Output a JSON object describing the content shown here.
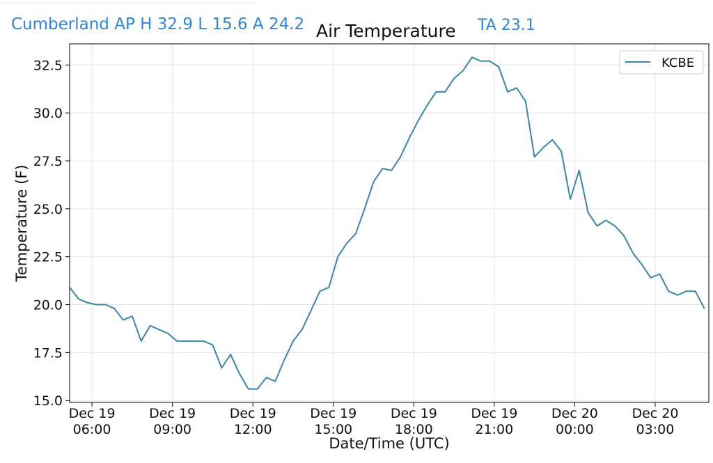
{
  "header": {
    "station_summary": "Cumberland AP H 32.9 L 15.6 A 24.2",
    "ta": "TA 23.1",
    "accent_color": "#2f86d4"
  },
  "chart_data": {
    "type": "line",
    "title": "Air Temperature",
    "xlabel": "Date/Time (UTC)",
    "ylabel": "Temperature (F)",
    "ylim": [
      14.9,
      33.6
    ],
    "xlim": [
      "Dec 19 05:10",
      "Dec 20 05:00"
    ],
    "xticks": [
      {
        "line1": "Dec 19",
        "line2": "06:00",
        "t": "Dec 19 06:00"
      },
      {
        "line1": "Dec 19",
        "line2": "09:00",
        "t": "Dec 19 09:00"
      },
      {
        "line1": "Dec 19",
        "line2": "12:00",
        "t": "Dec 19 12:00"
      },
      {
        "line1": "Dec 19",
        "line2": "15:00",
        "t": "Dec 19 15:00"
      },
      {
        "line1": "Dec 19",
        "line2": "18:00",
        "t": "Dec 19 18:00"
      },
      {
        "line1": "Dec 19",
        "line2": "21:00",
        "t": "Dec 19 21:00"
      },
      {
        "line1": "Dec 20",
        "line2": "00:00",
        "t": "Dec 20 00:00"
      },
      {
        "line1": "Dec 20",
        "line2": "03:00",
        "t": "Dec 20 03:00"
      }
    ],
    "yticks": [
      "15.0",
      "17.5",
      "20.0",
      "22.5",
      "25.0",
      "27.5",
      "30.0",
      "32.5"
    ],
    "grid": true,
    "legend": "top-right",
    "series": [
      {
        "name": "KCBE",
        "color": "#3a85a8",
        "points": [
          [
            "Dec 19 05:10",
            20.9
          ],
          [
            "Dec 19 05:30",
            20.3
          ],
          [
            "Dec 19 05:50",
            20.1
          ],
          [
            "Dec 19 06:10",
            20.0
          ],
          [
            "Dec 19 06:30",
            20.0
          ],
          [
            "Dec 19 06:50",
            19.8
          ],
          [
            "Dec 19 07:10",
            19.2
          ],
          [
            "Dec 19 07:30",
            19.4
          ],
          [
            "Dec 19 07:50",
            18.1
          ],
          [
            "Dec 19 08:10",
            18.9
          ],
          [
            "Dec 19 08:30",
            18.7
          ],
          [
            "Dec 19 08:50",
            18.5
          ],
          [
            "Dec 19 09:10",
            18.1
          ],
          [
            "Dec 19 09:30",
            18.1
          ],
          [
            "Dec 19 09:50",
            18.1
          ],
          [
            "Dec 19 10:10",
            18.1
          ],
          [
            "Dec 19 10:30",
            17.9
          ],
          [
            "Dec 19 10:50",
            16.7
          ],
          [
            "Dec 19 11:10",
            17.4
          ],
          [
            "Dec 19 11:30",
            16.4
          ],
          [
            "Dec 19 11:50",
            15.6
          ],
          [
            "Dec 19 12:10",
            15.6
          ],
          [
            "Dec 19 12:30",
            16.2
          ],
          [
            "Dec 19 12:50",
            16.0
          ],
          [
            "Dec 19 13:10",
            17.1
          ],
          [
            "Dec 19 13:30",
            18.1
          ],
          [
            "Dec 19 13:50",
            18.7
          ],
          [
            "Dec 19 14:10",
            19.7
          ],
          [
            "Dec 19 14:30",
            20.7
          ],
          [
            "Dec 19 14:50",
            20.9
          ],
          [
            "Dec 19 15:10",
            22.5
          ],
          [
            "Dec 19 15:30",
            23.2
          ],
          [
            "Dec 19 15:50",
            23.7
          ],
          [
            "Dec 19 16:10",
            25.0
          ],
          [
            "Dec 19 16:30",
            26.4
          ],
          [
            "Dec 19 16:50",
            27.1
          ],
          [
            "Dec 19 17:10",
            27.0
          ],
          [
            "Dec 19 17:30",
            27.7
          ],
          [
            "Dec 19 17:50",
            28.7
          ],
          [
            "Dec 19 18:10",
            29.6
          ],
          [
            "Dec 19 18:30",
            30.4
          ],
          [
            "Dec 19 18:50",
            31.1
          ],
          [
            "Dec 19 19:10",
            31.1
          ],
          [
            "Dec 19 19:30",
            31.8
          ],
          [
            "Dec 19 19:50",
            32.2
          ],
          [
            "Dec 19 20:10",
            32.9
          ],
          [
            "Dec 19 20:30",
            32.7
          ],
          [
            "Dec 19 20:50",
            32.7
          ],
          [
            "Dec 19 21:10",
            32.4
          ],
          [
            "Dec 19 21:30",
            31.1
          ],
          [
            "Dec 19 21:50",
            31.3
          ],
          [
            "Dec 19 22:10",
            30.6
          ],
          [
            "Dec 19 22:30",
            27.7
          ],
          [
            "Dec 19 22:50",
            28.2
          ],
          [
            "Dec 19 23:10",
            28.6
          ],
          [
            "Dec 19 23:30",
            28.0
          ],
          [
            "Dec 19 23:50",
            25.5
          ],
          [
            "Dec 20 00:10",
            27.0
          ],
          [
            "Dec 20 00:30",
            24.8
          ],
          [
            "Dec 20 00:50",
            24.1
          ],
          [
            "Dec 20 01:10",
            24.4
          ],
          [
            "Dec 20 01:30",
            24.1
          ],
          [
            "Dec 20 01:50",
            23.6
          ],
          [
            "Dec 20 02:10",
            22.7
          ],
          [
            "Dec 20 02:30",
            22.1
          ],
          [
            "Dec 20 02:50",
            21.4
          ],
          [
            "Dec 20 03:10",
            21.6
          ],
          [
            "Dec 20 03:30",
            20.7
          ],
          [
            "Dec 20 03:50",
            20.5
          ],
          [
            "Dec 20 04:10",
            20.7
          ],
          [
            "Dec 20 04:30",
            20.7
          ],
          [
            "Dec 20 04:50",
            19.8
          ]
        ]
      }
    ]
  }
}
